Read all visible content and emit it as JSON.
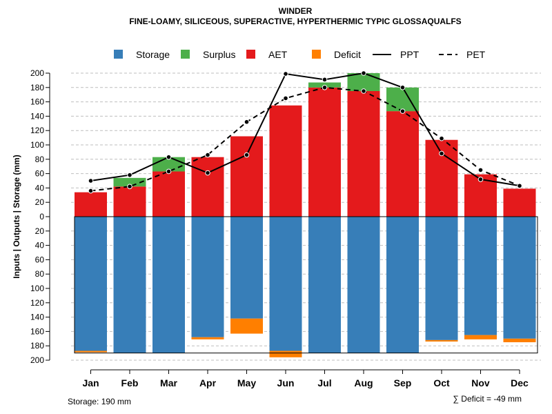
{
  "chart_data": {
    "type": "bar",
    "title": "WINDER",
    "subtitle": "FINE-LOAMY, SILICEOUS, SUPERACTIVE, HYPERTHERMIC TYPIC GLOSSAQUALFS",
    "ylabel": "Inputs | Outputs | Storage     (mm)",
    "ylim": [
      -200,
      200
    ],
    "yticks": [
      200,
      180,
      160,
      140,
      120,
      100,
      80,
      60,
      40,
      20,
      0,
      20,
      40,
      60,
      80,
      100,
      120,
      140,
      160,
      180,
      200
    ],
    "categories": [
      "Jan",
      "Feb",
      "Mar",
      "Apr",
      "May",
      "Jun",
      "Jul",
      "Aug",
      "Sep",
      "Oct",
      "Nov",
      "Dec"
    ],
    "legend": [
      {
        "label": "Storage",
        "color": "#377EB8",
        "kind": "box"
      },
      {
        "label": "Surplus",
        "color": "#4DAF4A",
        "kind": "box"
      },
      {
        "label": "AET",
        "color": "#E41A1C",
        "kind": "box"
      },
      {
        "label": "Deficit",
        "color": "#FF7F00",
        "kind": "box"
      },
      {
        "label": "PPT",
        "color": "#000000",
        "kind": "solid"
      },
      {
        "label": "PET",
        "color": "#000000",
        "kind": "dashed"
      }
    ],
    "series": {
      "AET": [
        34,
        42,
        63,
        83,
        112,
        155,
        180,
        175,
        147,
        107,
        59,
        39
      ],
      "Surplus": [
        0,
        12,
        20,
        0,
        0,
        0,
        7,
        25,
        33,
        0,
        0,
        0
      ],
      "Storage": [
        187,
        190,
        190,
        168,
        142,
        187,
        190,
        190,
        190,
        172,
        165,
        170
      ],
      "Deficit": [
        2,
        0,
        0,
        3,
        21,
        9,
        0,
        0,
        0,
        2,
        6,
        5
      ],
      "PPT": [
        50,
        58,
        83,
        61,
        86,
        199,
        191,
        200,
        180,
        88,
        52,
        43
      ],
      "PET": [
        36,
        42,
        63,
        86,
        132,
        165,
        180,
        175,
        147,
        109,
        65,
        43
      ]
    },
    "storage_capacity": 190,
    "colors": {
      "storage": "#377EB8",
      "surplus": "#4DAF4A",
      "aet": "#E41A1C",
      "deficit": "#FF7F00",
      "grid": "#BEBEBE"
    }
  },
  "footer": {
    "storage_label": "Storage: 190 mm",
    "deficit_label": "∑ Deficit = -49 mm"
  }
}
